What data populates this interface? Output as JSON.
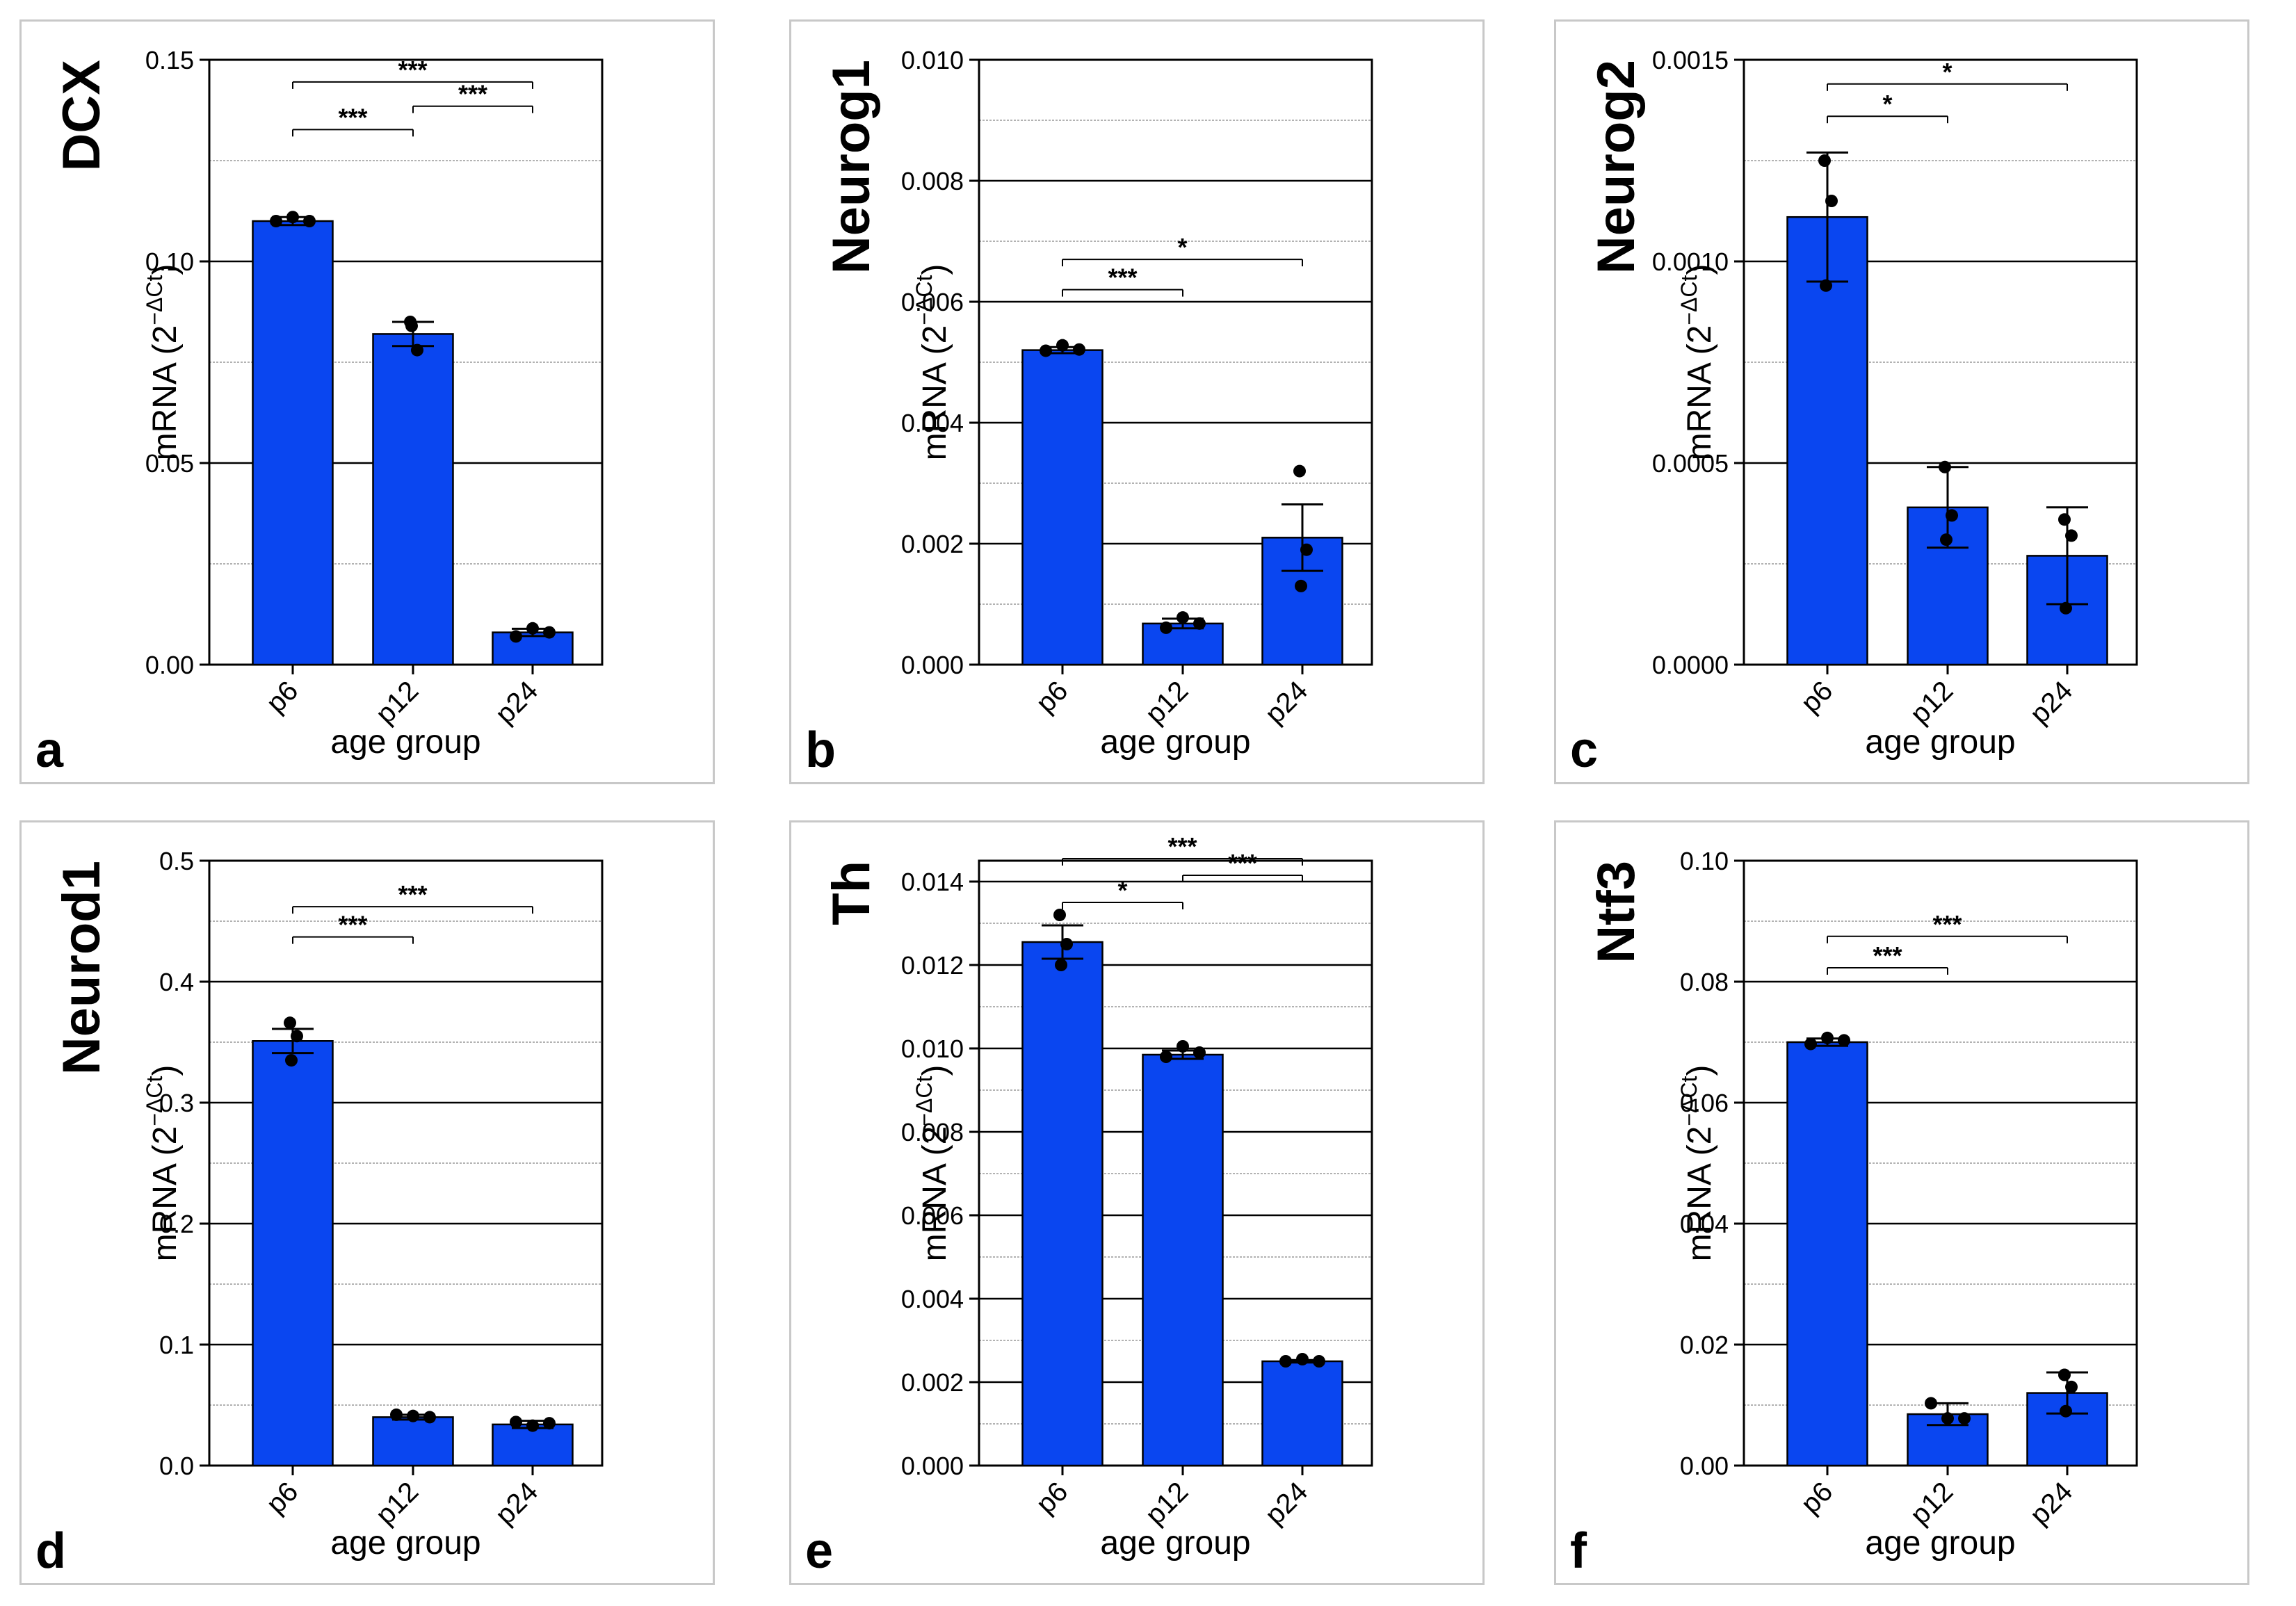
{
  "figure": {
    "x_axis_label": "age group",
    "y_axis_label": "mRNA (2",
    "y_axis_label_sup": "−ΔCt",
    "y_axis_label_close": ")"
  },
  "colors": {
    "bar_fill": "#0a46f0",
    "bar_stroke": "#000000",
    "panel_border": "#c8c8c8",
    "grid_major": "#000000",
    "grid_minor": "#999999"
  },
  "chart_data": [
    {
      "panel": "a",
      "title": "DCX",
      "type": "bar",
      "categories": [
        "p6",
        "p12",
        "p24"
      ],
      "values": [
        0.11,
        0.082,
        0.008
      ],
      "errors": [
        0.001,
        0.003,
        0.0009
      ],
      "points": [
        [
          0.11,
          0.111,
          0.11
        ],
        [
          0.085,
          0.078,
          0.084
        ],
        [
          0.007,
          0.009,
          0.008
        ]
      ],
      "ylim": [
        0,
        0.15
      ],
      "yticks": [
        "0.00",
        "0.05",
        "0.10",
        "0.15"
      ],
      "minor_ticks": [
        0.025,
        0.075,
        0.125
      ],
      "xlabel": "age group",
      "ylabel": "mRNA (2−ΔCt)",
      "significance": [
        {
          "from": 0,
          "to": 2,
          "label": "***",
          "y": 0.1445
        },
        {
          "from": 0,
          "to": 1,
          "label": "***",
          "y": 0.1327
        },
        {
          "from": 1,
          "to": 2,
          "label": "***",
          "y": 0.1385
        }
      ]
    },
    {
      "panel": "b",
      "title": "Neurog1",
      "type": "bar",
      "categories": [
        "p6",
        "p12",
        "p24"
      ],
      "values": [
        0.0052,
        0.00068,
        0.0021
      ],
      "errors": [
        5e-05,
        8e-05,
        0.00055
      ],
      "points": [
        [
          0.00519,
          0.00528,
          0.00521
        ],
        [
          0.00061,
          0.00078,
          0.00068
        ],
        [
          0.0032,
          0.0019,
          0.0013
        ]
      ],
      "ylim": [
        0,
        0.01
      ],
      "yticks": [
        "0.000",
        "0.002",
        "0.004",
        "0.006",
        "0.008",
        "0.010"
      ],
      "minor_ticks": [
        0.001,
        0.003,
        0.005,
        0.007,
        0.009
      ],
      "xlabel": "age group",
      "ylabel": "mRNA (2−ΔCt)",
      "significance": [
        {
          "from": 0,
          "to": 2,
          "label": "*",
          "y": 0.0067
        },
        {
          "from": 0,
          "to": 1,
          "label": "***",
          "y": 0.0062
        }
      ]
    },
    {
      "panel": "c",
      "title": "Neurog2",
      "type": "bar",
      "categories": [
        "p6",
        "p12",
        "p24"
      ],
      "values": [
        0.00111,
        0.00039,
        0.00027
      ],
      "errors": [
        0.00016,
        0.0001,
        0.00012
      ],
      "points": [
        [
          0.00125,
          0.00115,
          0.00094
        ],
        [
          0.00049,
          0.00037,
          0.00031
        ],
        [
          0.00036,
          0.00032,
          0.00014
        ]
      ],
      "ylim": [
        0,
        0.0015
      ],
      "yticks": [
        "0.0000",
        "0.0005",
        "0.0010",
        "0.0015"
      ],
      "minor_ticks": [
        0.00025,
        0.00075,
        0.00125
      ],
      "xlabel": "age group",
      "ylabel": "mRNA (2−ΔCt)",
      "significance": [
        {
          "from": 0,
          "to": 2,
          "label": "*",
          "y": 0.00144
        },
        {
          "from": 0,
          "to": 1,
          "label": "*",
          "y": 0.00136
        }
      ]
    },
    {
      "panel": "d",
      "title": "Neurod1",
      "type": "bar",
      "categories": [
        "p6",
        "p12",
        "p24"
      ],
      "values": [
        0.351,
        0.04,
        0.034
      ],
      "errors": [
        0.01,
        0.002,
        0.003
      ],
      "points": [
        [
          0.366,
          0.355,
          0.335
        ],
        [
          0.042,
          0.041,
          0.04
        ],
        [
          0.036,
          0.033,
          0.035
        ]
      ],
      "ylim": [
        0,
        0.5
      ],
      "yticks": [
        "0.0",
        "0.1",
        "0.2",
        "0.3",
        "0.4",
        "0.5"
      ],
      "minor_ticks": [
        0.05,
        0.15,
        0.25,
        0.35,
        0.45
      ],
      "xlabel": "age group",
      "ylabel": "mRNA (2−ΔCt)",
      "significance": [
        {
          "from": 0,
          "to": 2,
          "label": "***",
          "y": 0.462
        },
        {
          "from": 0,
          "to": 1,
          "label": "***",
          "y": 0.437
        }
      ]
    },
    {
      "panel": "e",
      "title": "Th",
      "type": "bar",
      "categories": [
        "p6",
        "p12",
        "p24"
      ],
      "values": [
        0.01255,
        0.00985,
        0.0025
      ],
      "errors": [
        0.0004,
        0.0001,
        3e-05
      ],
      "points": [
        [
          0.0132,
          0.0125,
          0.012
        ],
        [
          0.0098,
          0.01005,
          0.0099
        ],
        [
          0.0025,
          0.00255,
          0.0025
        ]
      ],
      "ylim": [
        0,
        0.0145
      ],
      "yticks": [
        "0.000",
        "0.002",
        "0.004",
        "0.006",
        "0.008",
        "0.010",
        "0.012",
        "0.014"
      ],
      "minor_ticks": [
        0.001,
        0.003,
        0.005,
        0.007,
        0.009,
        0.011,
        0.013
      ],
      "xlabel": "age group",
      "ylabel": "mRNA (2−ΔCt)",
      "significance": [
        {
          "from": 0,
          "to": 2,
          "label": "***",
          "y": 0.01455
        },
        {
          "from": 1,
          "to": 2,
          "label": "***",
          "y": 0.01415
        },
        {
          "from": 0,
          "to": 1,
          "label": "*",
          "y": 0.0135
        }
      ]
    },
    {
      "panel": "f",
      "title": "Ntf3",
      "type": "bar",
      "categories": [
        "p6",
        "p12",
        "p24"
      ],
      "values": [
        0.07,
        0.0085,
        0.012
      ],
      "errors": [
        0.0006,
        0.0018,
        0.0034
      ],
      "points": [
        [
          0.0697,
          0.0707,
          0.0703
        ],
        [
          0.0103,
          0.0078,
          0.0078
        ],
        [
          0.015,
          0.013,
          0.009
        ]
      ],
      "ylim": [
        0,
        0.1
      ],
      "yticks": [
        "0.00",
        "0.02",
        "0.04",
        "0.06",
        "0.08",
        "0.10"
      ],
      "minor_ticks": [
        0.01,
        0.03,
        0.05,
        0.07,
        0.09
      ],
      "xlabel": "age group",
      "ylabel": "mRNA (2−ΔCt)",
      "significance": [
        {
          "from": 0,
          "to": 2,
          "label": "***",
          "y": 0.0875
        },
        {
          "from": 0,
          "to": 1,
          "label": "***",
          "y": 0.0823
        }
      ]
    }
  ]
}
